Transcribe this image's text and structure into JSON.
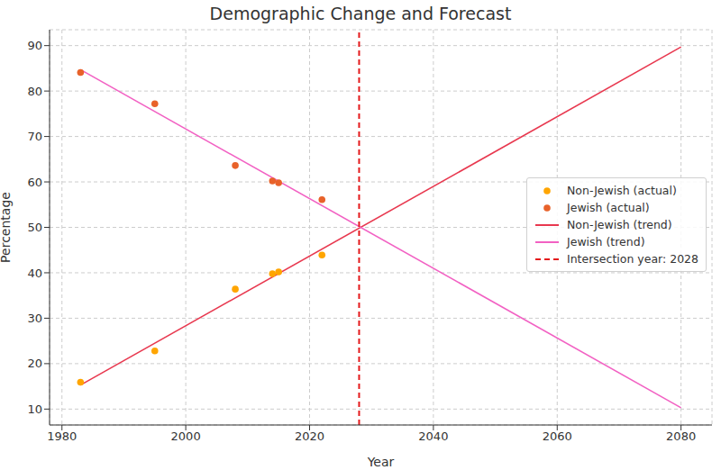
{
  "chart_data": {
    "type": "scatter",
    "title": "Demographic Change and Forecast",
    "x_label": "Year",
    "y_label": "Percentage",
    "xlim": [
      1978,
      2085
    ],
    "xticks": [
      1980,
      2000,
      2020,
      2040,
      2060,
      2080
    ],
    "ylim": [
      6.5,
      93.5
    ],
    "yticks": [
      10,
      20,
      30,
      40,
      50,
      60,
      70,
      80,
      90
    ],
    "grid": true,
    "legend": "right",
    "series": [
      {
        "name": "Non-Jewish (actual)",
        "type": "scatter",
        "marker": "circle",
        "color": "#ffa500",
        "x": [
          1983,
          1995,
          2008,
          2014,
          2015,
          2022
        ],
        "values": [
          15.9,
          22.8,
          36.4,
          39.8,
          40.2,
          43.9
        ]
      },
      {
        "name": "Jewish (actual)",
        "type": "scatter",
        "marker": "circle",
        "color": "#e8622a",
        "x": [
          1983,
          1995,
          2008,
          2014,
          2015,
          2022
        ],
        "values": [
          84.1,
          77.2,
          63.6,
          60.2,
          59.8,
          56.1
        ]
      },
      {
        "name": "Non-Jewish (trend)",
        "type": "line",
        "line_style": "solid",
        "color": "#e8384f",
        "x": [
          1983,
          2080
        ],
        "values": [
          15.3,
          89.7
        ]
      },
      {
        "name": "Jewish (trend)",
        "type": "line",
        "line_style": "solid",
        "color": "#f261c3",
        "x": [
          1983,
          2080
        ],
        "values": [
          84.7,
          10.3
        ]
      }
    ],
    "reference_line": {
      "x": 2028,
      "label": "Intersection year: 2028",
      "color": "#e41a1c",
      "line_style": "dashed"
    }
  }
}
